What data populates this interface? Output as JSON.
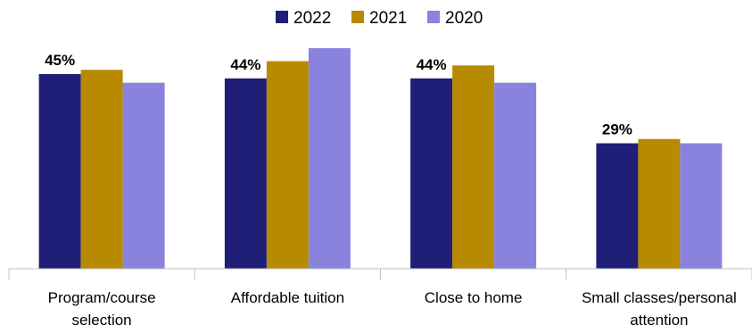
{
  "chart_data": {
    "type": "bar",
    "categories": [
      [
        "Program/course",
        "selection"
      ],
      [
        "Affordable tuition"
      ],
      [
        "Close to home"
      ],
      [
        "Small classes/personal",
        "attention"
      ]
    ],
    "series": [
      {
        "name": "2022",
        "color": "#1f1f78",
        "values": [
          45,
          44,
          44,
          29
        ]
      },
      {
        "name": "2021",
        "color": "#b88a00",
        "values": [
          46,
          48,
          47,
          30
        ]
      },
      {
        "name": "2020",
        "color": "#8a83de",
        "values": [
          43,
          51,
          43,
          29
        ]
      }
    ],
    "data_labels": [
      "45%",
      "44%",
      "44%",
      "29%"
    ],
    "ylim": [
      0,
      60
    ],
    "legend_position": "top-center",
    "grid": false
  }
}
